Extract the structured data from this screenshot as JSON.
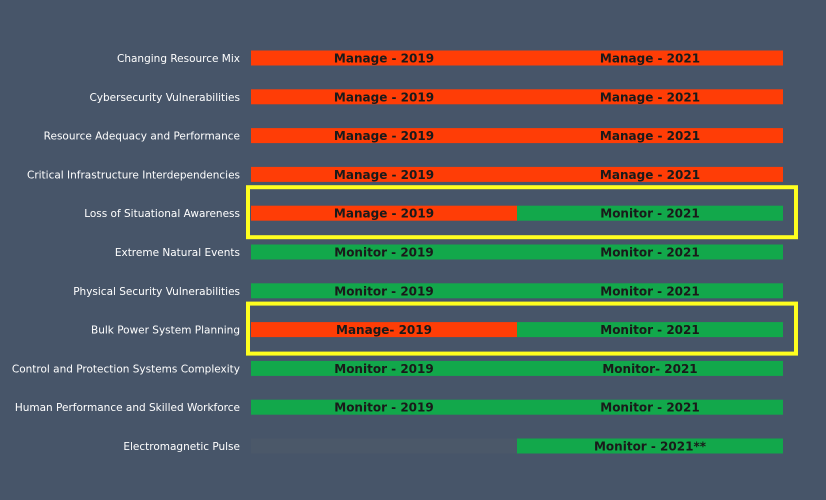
{
  "colors": {
    "background": "#475569",
    "manage": "#ff3d06",
    "monitor": "#12a84b",
    "empty": "#4b5869",
    "highlight": "#ffff1f"
  },
  "chart_data": {
    "type": "table",
    "columns": [
      "2019",
      "2021"
    ],
    "rows": [
      {
        "risk": "Changing Resource Mix",
        "y2019": "Manage - 2019",
        "y2021": "Manage - 2021",
        "s2019": "manage",
        "s2021": "manage"
      },
      {
        "risk": "Cybersecurity Vulnerabilities",
        "y2019": "Manage - 2019",
        "y2021": "Manage - 2021",
        "s2019": "manage",
        "s2021": "manage"
      },
      {
        "risk": "Resource Adequacy and Performance",
        "y2019": "Manage - 2019",
        "y2021": "Manage - 2021",
        "s2019": "manage",
        "s2021": "manage"
      },
      {
        "risk": "Critical Infrastructure Interdependencies",
        "y2019": "Manage - 2019",
        "y2021": "Manage - 2021",
        "s2019": "manage",
        "s2021": "manage"
      },
      {
        "risk": "Loss of Situational Awareness",
        "y2019": "Manage - 2019",
        "y2021": "Monitor - 2021",
        "s2019": "manage",
        "s2021": "monitor",
        "highlighted": true
      },
      {
        "risk": "Extreme Natural Events",
        "y2019": "Monitor - 2019",
        "y2021": "Monitor - 2021",
        "s2019": "monitor",
        "s2021": "monitor"
      },
      {
        "risk": "Physical Security Vulnerabilities",
        "y2019": "Monitor - 2019",
        "y2021": "Monitor - 2021",
        "s2019": "monitor",
        "s2021": "monitor"
      },
      {
        "risk": "Bulk Power System Planning",
        "y2019": "Manage- 2019",
        "y2021": "Monitor - 2021",
        "s2019": "manage",
        "s2021": "monitor",
        "highlighted": true
      },
      {
        "risk": "Control and Protection Systems Complexity",
        "y2019": "Monitor - 2019",
        "y2021": "Monitor- 2021",
        "s2019": "monitor",
        "s2021": "monitor"
      },
      {
        "risk": "Human Performance and Skilled Workforce",
        "y2019": "Monitor - 2019",
        "y2021": "Monitor - 2021",
        "s2019": "monitor",
        "s2021": "monitor"
      },
      {
        "risk": "Electromagnetic Pulse",
        "y2019": "",
        "y2021": "Monitor - 2021**",
        "s2019": "none",
        "s2021": "monitor"
      }
    ]
  }
}
